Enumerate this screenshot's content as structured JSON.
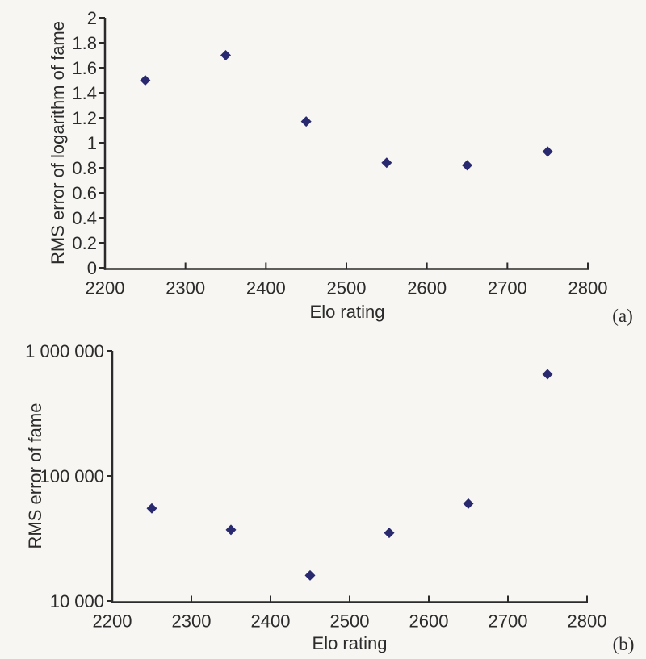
{
  "figure": {
    "background": "#f7f6f2",
    "text_color": "#2b2b2b",
    "axis_color": "#2b2b2b",
    "marker_color": "#292970",
    "marker_shape": "diamond"
  },
  "chart_data": [
    {
      "type": "scatter",
      "panel_label": "(a)",
      "xlabel": "Elo rating",
      "ylabel": "RMS error of logarithm of fame",
      "xlim": [
        2200,
        2800
      ],
      "ylim": [
        0,
        2
      ],
      "yscale": "linear",
      "grid": false,
      "legend": "none",
      "x_ticks": [
        2200,
        2300,
        2400,
        2500,
        2600,
        2700,
        2800
      ],
      "x_tick_labels": [
        "2200",
        "2300",
        "2400",
        "2500",
        "2600",
        "2700",
        "2800"
      ],
      "y_ticks": [
        0,
        0.2,
        0.4,
        0.6,
        0.8,
        1,
        1.2,
        1.4,
        1.6,
        1.8,
        2
      ],
      "y_tick_labels": [
        "0",
        "0.2",
        "0.4",
        "0.6",
        "0.8",
        "1",
        "1.2",
        "1.4",
        "1.6",
        "1.8",
        "2"
      ],
      "x": [
        2250,
        2350,
        2450,
        2550,
        2650,
        2750
      ],
      "y": [
        1.5,
        1.7,
        1.17,
        0.84,
        0.82,
        0.93
      ]
    },
    {
      "type": "scatter",
      "panel_label": "(b)",
      "xlabel": "Elo rating",
      "ylabel": "RMS error of fame",
      "xlim": [
        2200,
        2800
      ],
      "ylim": [
        10000,
        1000000
      ],
      "yscale": "log",
      "grid": false,
      "legend": "none",
      "x_ticks": [
        2200,
        2300,
        2400,
        2500,
        2600,
        2700,
        2800
      ],
      "x_tick_labels": [
        "2200",
        "2300",
        "2400",
        "2500",
        "2600",
        "2700",
        "2800"
      ],
      "y_ticks": [
        10000,
        100000,
        1000000
      ],
      "y_tick_labels": [
        "10 000",
        "100 000",
        "1 000 000"
      ],
      "x": [
        2250,
        2350,
        2450,
        2550,
        2650,
        2750
      ],
      "y": [
        55000,
        37000,
        16000,
        35000,
        60000,
        650000
      ]
    }
  ]
}
